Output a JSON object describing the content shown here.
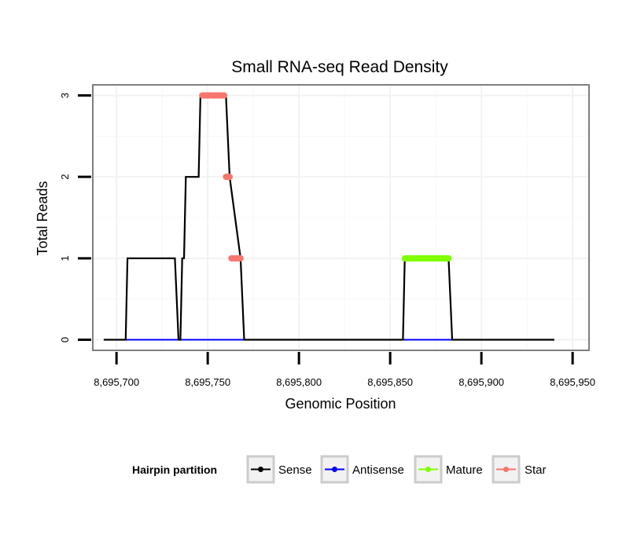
{
  "chart_data": {
    "type": "line",
    "title": "Small RNA-seq Read Density",
    "xlabel": "Genomic Position",
    "ylabel": "Total Reads",
    "xlim": [
      8695687,
      8695959
    ],
    "ylim": [
      -0.13,
      3.13
    ],
    "x_ticks": [
      8695700,
      8695750,
      8695800,
      8695850,
      8695900,
      8695950
    ],
    "x_tick_labels": [
      "8,695,700",
      "8,695,750",
      "8,695,800",
      "8,695,850",
      "8,695,900",
      "8,695,950"
    ],
    "y_ticks": [
      0,
      1,
      2,
      3
    ],
    "y_tick_labels": [
      "0",
      "1",
      "2",
      "3"
    ],
    "grid": true,
    "legend": {
      "title": "Hairpin partition",
      "position": "bottom",
      "entries": [
        "Sense",
        "Antisense",
        "Mature",
        "Star"
      ]
    },
    "series": [
      {
        "name": "Sense",
        "color": "#000000",
        "x": [
          8695693,
          8695705,
          8695706,
          8695732,
          8695734,
          8695735,
          8695736,
          8695737,
          8695738,
          8695745,
          8695746,
          8695760,
          8695762,
          8695768,
          8695770,
          8695857,
          8695858,
          8695882,
          8695884,
          8695940
        ],
        "y": [
          0,
          0,
          1,
          1,
          0,
          0,
          1,
          1,
          2,
          2,
          3,
          3,
          2,
          1,
          0,
          0,
          1,
          1,
          0,
          0
        ]
      },
      {
        "name": "Antisense",
        "color": "#0000ff",
        "segments": [
          {
            "x": [
              8695705,
              8695770
            ],
            "y": [
              0,
              0
            ]
          },
          {
            "x": [
              8695857,
              8695884
            ],
            "y": [
              0,
              0
            ]
          }
        ]
      },
      {
        "name": "Mature",
        "color": "#7fff00",
        "segments": [
          {
            "x": [
              8695858,
              8695882
            ],
            "y": [
              1,
              1
            ]
          }
        ]
      },
      {
        "name": "Star",
        "color": "#f8766d",
        "segments": [
          {
            "x": [
              8695747,
              8695759
            ],
            "y": [
              3,
              3
            ]
          },
          {
            "x": [
              8695760,
              8695762
            ],
            "y": [
              2,
              2
            ]
          },
          {
            "x": [
              8695763,
              8695768
            ],
            "y": [
              1,
              1
            ]
          }
        ]
      }
    ]
  }
}
